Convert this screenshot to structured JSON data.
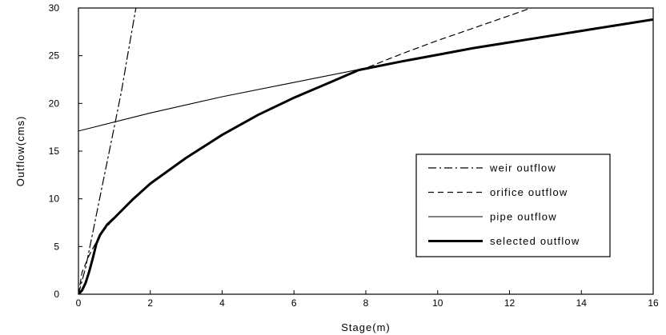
{
  "chart_data": {
    "type": "line",
    "title": "",
    "xlabel": "Stage(m)",
    "ylabel": "Outflow(cms)",
    "xlim": [
      0,
      16
    ],
    "ylim": [
      0,
      30
    ],
    "xticks": [
      0,
      2,
      4,
      6,
      8,
      10,
      12,
      14,
      16
    ],
    "yticks": [
      0,
      5,
      10,
      15,
      20,
      25,
      30
    ],
    "grid": false,
    "legend_position": "center-right",
    "series": [
      {
        "name": "weir outflow",
        "style": "dash-dot",
        "color": "#000000",
        "x": [
          0,
          0.2,
          0.4,
          0.6,
          0.8,
          1.0,
          1.2,
          1.4,
          1.6
        ],
        "y": [
          0,
          2.8,
          6.5,
          10.2,
          13.9,
          17.6,
          21.3,
          25.7,
          30.0
        ]
      },
      {
        "name": "orifice outflow",
        "style": "dashed",
        "color": "#000000",
        "x": [
          0,
          0.1,
          0.3,
          0.6,
          1,
          2,
          3,
          4,
          5,
          6,
          7,
          8,
          9,
          10,
          11,
          12,
          12.6
        ],
        "y": [
          0,
          2.3,
          4.1,
          6.2,
          8.0,
          11.6,
          14.3,
          16.7,
          18.8,
          20.6,
          22.2,
          23.7,
          25.2,
          26.6,
          27.9,
          29.2,
          30.0
        ]
      },
      {
        "name": "pipe outflow",
        "style": "solid",
        "color": "#000000",
        "x": [
          0,
          2,
          4,
          6,
          8,
          10,
          12,
          14,
          16
        ],
        "y": [
          17.1,
          19.0,
          20.7,
          22.2,
          23.7,
          25.1,
          26.4,
          27.6,
          28.8
        ]
      },
      {
        "name": "selected outflow",
        "style": "bold",
        "color": "#000000",
        "x": [
          0,
          0.1,
          0.2,
          0.3,
          0.4,
          0.5,
          0.6,
          0.8,
          1,
          1.5,
          2,
          3,
          4,
          5,
          6,
          7,
          7.8,
          9,
          10,
          11,
          12,
          13,
          14,
          15,
          16
        ],
        "y": [
          0,
          0.4,
          1.2,
          2.4,
          3.8,
          5.3,
          6.2,
          7.3,
          8.0,
          9.9,
          11.6,
          14.3,
          16.7,
          18.8,
          20.6,
          22.2,
          23.5,
          24.4,
          25.1,
          25.8,
          26.4,
          27.0,
          27.6,
          28.2,
          28.8
        ]
      }
    ]
  }
}
